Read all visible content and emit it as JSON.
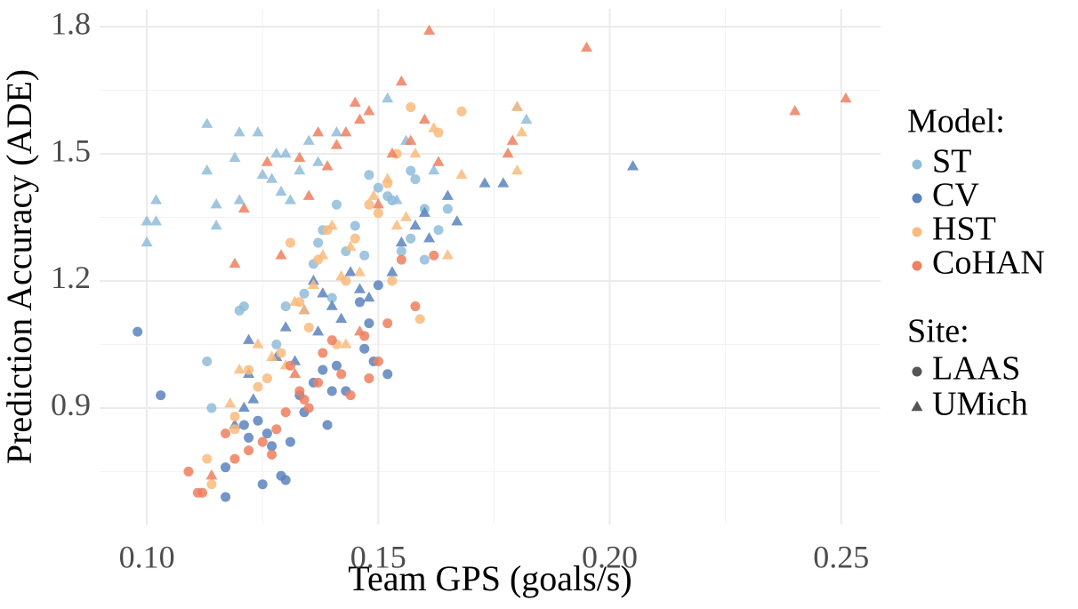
{
  "chart_data": {
    "type": "scatter",
    "x_label": "Team GPS (goals/s)",
    "y_label": "Prediction Accuracy (ADE)",
    "xlim": [
      0.0898,
      0.2585
    ],
    "ylim": [
      0.625,
      1.842
    ],
    "xticks": [
      {
        "value": 0.1,
        "label": "0.10"
      },
      {
        "value": 0.15,
        "label": "0.15"
      },
      {
        "value": 0.2,
        "label": "0.20"
      },
      {
        "value": 0.25,
        "label": "0.25"
      }
    ],
    "yticks": [
      {
        "value": 0.9,
        "label": "0.9"
      },
      {
        "value": 1.2,
        "label": "1.2"
      },
      {
        "value": 1.5,
        "label": "1.5"
      },
      {
        "value": 1.8,
        "label": "1.8"
      }
    ],
    "xminorticks": [
      0.125,
      0.175,
      0.225
    ],
    "yminorticks": [
      0.75,
      1.05,
      1.35,
      1.65
    ],
    "grid": true,
    "legend_position": "right",
    "color_legend_title": "Model:",
    "shape_legend_title": "Site:",
    "models": [
      {
        "name": "ST",
        "color": "#8fbcda"
      },
      {
        "name": "CV",
        "color": "#5a82bd"
      },
      {
        "name": "HST",
        "color": "#f9bb7d"
      },
      {
        "name": "CoHAN",
        "color": "#ee7f5f"
      }
    ],
    "sites": [
      {
        "name": "LAAS",
        "marker": "circle"
      },
      {
        "name": "UMich",
        "marker": "triangle"
      }
    ],
    "series": [
      {
        "model": 0,
        "site": 1,
        "x": [
          0.1,
          0.1,
          0.102,
          0.102,
          0.113,
          0.113,
          0.115,
          0.115,
          0.119,
          0.12,
          0.12,
          0.124,
          0.125,
          0.127,
          0.128,
          0.129,
          0.13,
          0.131,
          0.133,
          0.135,
          0.137,
          0.141,
          0.152,
          0.154,
          0.156,
          0.162,
          0.182,
          0.18
        ],
        "values": [
          1.29,
          1.34,
          1.39,
          1.34,
          1.57,
          1.46,
          1.38,
          1.33,
          1.49,
          1.55,
          1.39,
          1.55,
          1.45,
          1.44,
          1.5,
          1.41,
          1.5,
          1.39,
          1.46,
          1.53,
          1.48,
          1.55,
          1.63,
          1.39,
          1.53,
          1.46,
          1.58,
          1.61
        ]
      },
      {
        "model": 0,
        "site": 0,
        "x": [
          0.113,
          0.114,
          0.12,
          0.121,
          0.128,
          0.13,
          0.134,
          0.136,
          0.137,
          0.138,
          0.14,
          0.141,
          0.143,
          0.145,
          0.147,
          0.148,
          0.15,
          0.152,
          0.153,
          0.155,
          0.157,
          0.158,
          0.16,
          0.16,
          0.163,
          0.165,
          0.157
        ],
        "values": [
          1.01,
          0.9,
          1.13,
          1.14,
          1.05,
          1.14,
          1.17,
          1.24,
          1.29,
          1.32,
          1.16,
          1.38,
          1.27,
          1.33,
          1.26,
          1.45,
          1.42,
          1.4,
          1.39,
          1.27,
          1.3,
          1.44,
          1.37,
          1.25,
          1.32,
          1.37,
          1.46
        ]
      },
      {
        "model": 1,
        "site": 0,
        "x": [
          0.098,
          0.103,
          0.117,
          0.117,
          0.121,
          0.122,
          0.124,
          0.125,
          0.126,
          0.127,
          0.129,
          0.13,
          0.131,
          0.133,
          0.134,
          0.136,
          0.138,
          0.139,
          0.14,
          0.141,
          0.143,
          0.146,
          0.147,
          0.149,
          0.15,
          0.152,
          0.148
        ],
        "values": [
          1.08,
          0.93,
          0.76,
          0.69,
          0.86,
          0.83,
          0.87,
          0.72,
          0.84,
          0.81,
          0.74,
          0.73,
          0.82,
          0.93,
          0.89,
          0.96,
          0.99,
          0.86,
          0.94,
          1.0,
          0.94,
          1.15,
          1.04,
          1.01,
          1.19,
          0.98,
          1.1
        ]
      },
      {
        "model": 1,
        "site": 1,
        "x": [
          0.119,
          0.121,
          0.122,
          0.122,
          0.123,
          0.128,
          0.13,
          0.132,
          0.134,
          0.136,
          0.137,
          0.138,
          0.14,
          0.142,
          0.144,
          0.146,
          0.148,
          0.153,
          0.155,
          0.158,
          0.16,
          0.161,
          0.165,
          0.167,
          0.173,
          0.177,
          0.205
        ],
        "values": [
          0.86,
          0.9,
          1.06,
          0.98,
          0.92,
          1.02,
          1.09,
          1.01,
          1.13,
          1.2,
          1.08,
          1.17,
          1.14,
          1.11,
          1.22,
          1.18,
          1.16,
          1.22,
          1.29,
          1.33,
          1.36,
          1.3,
          1.4,
          1.34,
          1.43,
          1.43,
          1.47
        ]
      },
      {
        "model": 2,
        "site": 0,
        "x": [
          0.113,
          0.114,
          0.119,
          0.119,
          0.122,
          0.124,
          0.126,
          0.129,
          0.131,
          0.133,
          0.135,
          0.137,
          0.139,
          0.141,
          0.143,
          0.145,
          0.148,
          0.15,
          0.152,
          0.154,
          0.157,
          0.159,
          0.163,
          0.168,
          0.153
        ],
        "values": [
          0.78,
          0.72,
          0.85,
          0.88,
          0.99,
          0.95,
          0.97,
          1.03,
          1.29,
          1.15,
          1.09,
          1.25,
          1.32,
          1.05,
          1.2,
          1.3,
          1.38,
          1.36,
          1.43,
          1.5,
          1.61,
          1.11,
          1.55,
          1.6,
          1.2
        ]
      },
      {
        "model": 2,
        "site": 1,
        "x": [
          0.118,
          0.12,
          0.124,
          0.127,
          0.13,
          0.132,
          0.134,
          0.136,
          0.138,
          0.14,
          0.142,
          0.144,
          0.146,
          0.149,
          0.152,
          0.154,
          0.156,
          0.158,
          0.162,
          0.165,
          0.168,
          0.18,
          0.18,
          0.181,
          0.143
        ],
        "values": [
          0.91,
          0.99,
          1.05,
          1.02,
          1.0,
          1.15,
          1.13,
          1.19,
          1.26,
          1.33,
          1.21,
          1.28,
          1.22,
          1.4,
          1.44,
          1.33,
          1.35,
          1.5,
          1.56,
          1.26,
          1.45,
          1.46,
          1.61,
          1.55,
          1.05
        ]
      },
      {
        "model": 3,
        "site": 0,
        "x": [
          0.109,
          0.111,
          0.112,
          0.117,
          0.119,
          0.122,
          0.125,
          0.127,
          0.128,
          0.13,
          0.131,
          0.133,
          0.134,
          0.135,
          0.137,
          0.138,
          0.14,
          0.142,
          0.144,
          0.147,
          0.15,
          0.152,
          0.155,
          0.158,
          0.162,
          0.148
        ],
        "values": [
          0.75,
          0.7,
          0.7,
          0.84,
          0.78,
          0.8,
          0.82,
          0.79,
          0.85,
          0.89,
          1.0,
          0.94,
          0.92,
          0.9,
          0.96,
          1.03,
          1.06,
          0.98,
          0.93,
          1.07,
          1.01,
          1.1,
          1.25,
          1.14,
          1.26,
          0.97
        ]
      },
      {
        "model": 3,
        "site": 1,
        "x": [
          0.114,
          0.119,
          0.121,
          0.126,
          0.129,
          0.133,
          0.135,
          0.137,
          0.139,
          0.141,
          0.143,
          0.145,
          0.146,
          0.148,
          0.15,
          0.153,
          0.155,
          0.157,
          0.16,
          0.161,
          0.163,
          0.178,
          0.179,
          0.195,
          0.24,
          0.251,
          0.132,
          0.146
        ],
        "values": [
          0.74,
          1.24,
          1.37,
          1.48,
          1.26,
          1.49,
          1.4,
          1.55,
          1.47,
          1.52,
          1.55,
          1.62,
          1.58,
          1.6,
          1.38,
          1.5,
          1.67,
          1.53,
          1.58,
          1.79,
          1.48,
          1.5,
          1.53,
          1.75,
          1.6,
          1.63,
          0.98,
          1.08
        ]
      }
    ]
  }
}
